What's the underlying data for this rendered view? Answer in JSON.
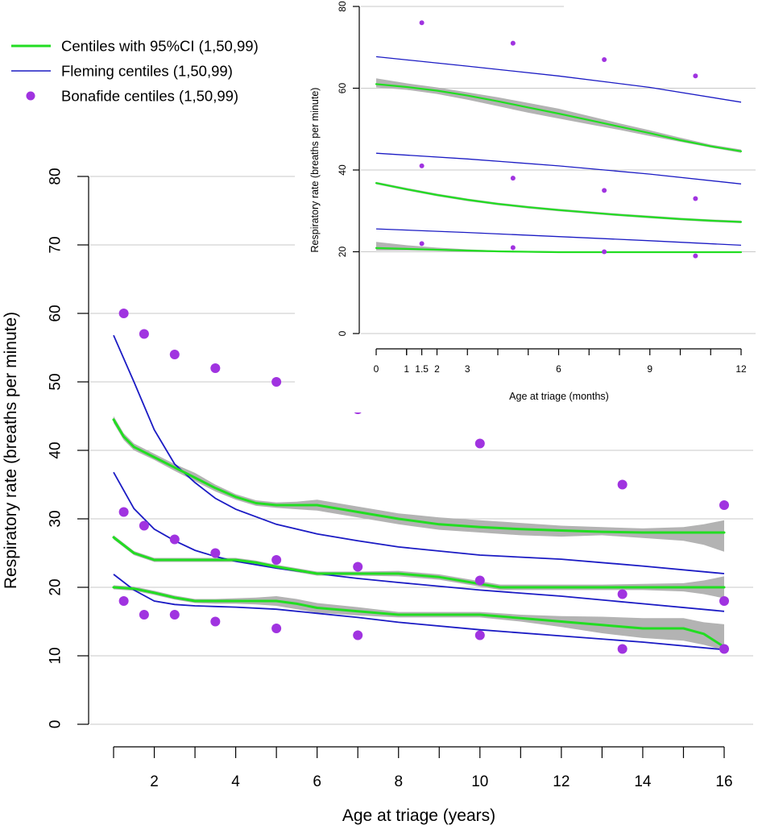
{
  "legend": {
    "items": [
      {
        "label": "Centiles with 95%CI (1,50,99)",
        "kind": "line",
        "color": "#22dd22",
        "width": 3
      },
      {
        "label": "Fleming centiles (1,50,99)",
        "kind": "line",
        "color": "#1b1bc4",
        "width": 1.6
      },
      {
        "label": "Bonafide centiles (1,50,99)",
        "kind": "point",
        "color": "#a033e0"
      }
    ]
  },
  "colors": {
    "centile": "#22dd22",
    "ci_band": "#b3b3b3",
    "fleming": "#1b1bc4",
    "bonafide": "#a033e0",
    "grid": "#c8c8c8"
  },
  "chart_data": [
    {
      "id": "main",
      "type": "line",
      "xlabel": "Age at triage (years)",
      "ylabel": "Respiratory rate (breaths per minute)",
      "xlim": [
        1,
        16
      ],
      "ylim": [
        0,
        80
      ],
      "x_ticks": [
        1,
        2,
        3,
        4,
        5,
        6,
        7,
        8,
        9,
        10,
        11,
        12,
        13,
        14,
        15,
        16
      ],
      "x_tick_labels": [
        "",
        "2",
        "",
        "4",
        "",
        "6",
        "",
        "8",
        "",
        "10",
        "",
        "12",
        "",
        "14",
        "",
        "16"
      ],
      "y_ticks": [
        0,
        10,
        20,
        30,
        40,
        50,
        60,
        70,
        80
      ],
      "y_tick_labels": [
        "0",
        "10",
        "20",
        "30",
        "40",
        "50",
        "60",
        "70",
        "80"
      ],
      "grid": "horizontal",
      "series": [
        {
          "group": "centile",
          "centile": 99,
          "x": [
            1.0,
            1.25,
            1.5,
            2.0,
            2.5,
            3.0,
            3.5,
            4.0,
            4.5,
            5.0,
            5.5,
            6.0,
            7.0,
            8.0,
            9.0,
            10.0,
            11.0,
            12.0,
            13.0,
            14.0,
            15.0,
            15.5,
            16.0
          ],
          "y": [
            44.5,
            42.0,
            40.5,
            39.0,
            37.5,
            36.0,
            34.5,
            33.2,
            32.3,
            32.0,
            32.0,
            32.0,
            31.0,
            30.0,
            29.2,
            28.8,
            28.5,
            28.3,
            28.1,
            28.0,
            28.0,
            28.0,
            28.0
          ],
          "ci_low": [
            44.0,
            41.5,
            40.0,
            38.6,
            37.0,
            35.5,
            34.0,
            32.8,
            31.9,
            31.6,
            31.4,
            31.2,
            30.2,
            29.2,
            28.4,
            28.0,
            27.6,
            27.4,
            27.6,
            27.2,
            26.8,
            26.2,
            25.2
          ],
          "ci_high": [
            45.0,
            42.5,
            41.0,
            39.5,
            38.0,
            36.7,
            35.0,
            33.6,
            32.7,
            32.4,
            32.5,
            32.8,
            31.8,
            30.8,
            30.2,
            29.8,
            29.4,
            29.0,
            28.8,
            28.6,
            28.8,
            29.2,
            29.8
          ]
        },
        {
          "group": "centile",
          "centile": 50,
          "x": [
            1.0,
            1.5,
            2.0,
            2.5,
            3.0,
            3.5,
            4.0,
            4.5,
            5.0,
            6.0,
            7.0,
            8.0,
            9.0,
            9.5,
            10.0,
            10.5,
            11.0,
            12.0,
            13.0,
            14.0,
            15.0,
            15.5,
            16.0
          ],
          "y": [
            27.3,
            25.0,
            24.0,
            24.0,
            24.0,
            24.0,
            24.0,
            23.6,
            23.0,
            22.0,
            22.0,
            22.0,
            21.5,
            21.0,
            20.5,
            20.0,
            20.0,
            20.0,
            20.0,
            20.0,
            20.0,
            20.0,
            20.0
          ],
          "ci_low": [
            27.0,
            24.7,
            23.7,
            23.7,
            23.7,
            23.7,
            23.7,
            23.3,
            22.7,
            21.7,
            21.7,
            21.6,
            21.1,
            20.6,
            20.1,
            19.6,
            19.6,
            19.6,
            19.6,
            19.6,
            19.4,
            19.0,
            18.4
          ],
          "ci_high": [
            27.6,
            25.3,
            24.3,
            24.3,
            24.3,
            24.3,
            24.3,
            23.9,
            23.3,
            22.3,
            22.3,
            22.4,
            21.9,
            21.4,
            20.9,
            20.4,
            20.4,
            20.4,
            20.4,
            20.5,
            20.6,
            21.0,
            21.6
          ]
        },
        {
          "group": "centile",
          "centile": 1,
          "x": [
            1.0,
            1.5,
            2.0,
            2.5,
            3.0,
            3.5,
            4.0,
            4.5,
            5.0,
            5.5,
            6.0,
            7.0,
            8.0,
            9.0,
            10.0,
            11.0,
            12.0,
            13.0,
            14.0,
            15.0,
            15.5,
            16.0
          ],
          "y": [
            20.0,
            19.8,
            19.2,
            18.5,
            18.0,
            18.0,
            18.0,
            18.0,
            18.0,
            17.6,
            17.0,
            16.5,
            16.0,
            16.0,
            16.0,
            15.5,
            15.0,
            14.5,
            14.0,
            14.0,
            13.2,
            11.3
          ],
          "ci_low": [
            19.7,
            19.5,
            18.9,
            18.2,
            17.7,
            17.6,
            17.6,
            17.5,
            17.3,
            16.8,
            16.3,
            15.9,
            15.6,
            15.6,
            15.6,
            15.0,
            14.2,
            13.3,
            12.6,
            12.2,
            11.6,
            10.8
          ],
          "ci_high": [
            20.3,
            20.1,
            19.5,
            18.8,
            18.3,
            18.3,
            18.4,
            18.5,
            18.7,
            18.3,
            17.7,
            17.1,
            16.4,
            16.4,
            16.4,
            16.0,
            15.8,
            15.7,
            15.5,
            15.5,
            14.9,
            14.6
          ]
        },
        {
          "group": "fleming",
          "centile": 99,
          "x": [
            1.0,
            1.5,
            2.0,
            2.5,
            3.0,
            3.5,
            4.0,
            5.0,
            6.0,
            7.0,
            8.0,
            10.0,
            12.0,
            14.0,
            16.0
          ],
          "y": [
            56.8,
            50.0,
            43.0,
            38.0,
            35.3,
            33.0,
            31.4,
            29.2,
            27.8,
            26.8,
            25.9,
            24.7,
            24.1,
            23.1,
            22.0
          ]
        },
        {
          "group": "fleming",
          "centile": 50,
          "x": [
            1.0,
            1.5,
            2.0,
            2.5,
            3.0,
            3.5,
            4.0,
            5.0,
            6.0,
            7.0,
            8.0,
            10.0,
            12.0,
            14.0,
            16.0
          ],
          "y": [
            36.8,
            31.5,
            28.5,
            26.8,
            25.4,
            24.5,
            23.8,
            22.8,
            22.0,
            21.3,
            20.7,
            19.6,
            18.7,
            17.6,
            16.5
          ]
        },
        {
          "group": "fleming",
          "centile": 1,
          "x": [
            1.0,
            1.5,
            2.0,
            2.5,
            3.0,
            3.5,
            4.0,
            5.0,
            6.0,
            7.0,
            8.0,
            10.0,
            12.0,
            14.0,
            16.0
          ],
          "y": [
            21.9,
            19.6,
            18.0,
            17.5,
            17.3,
            17.2,
            17.1,
            16.8,
            16.2,
            15.6,
            14.9,
            13.8,
            12.9,
            12.0,
            10.9
          ]
        },
        {
          "group": "bonafide",
          "centile": 99,
          "x": [
            1.25,
            1.75,
            2.5,
            3.5,
            5.0,
            7.0,
            10.0,
            13.5,
            16.0
          ],
          "y": [
            60,
            57,
            54,
            52,
            50,
            46,
            41,
            35,
            32
          ]
        },
        {
          "group": "bonafide",
          "centile": 50,
          "x": [
            1.25,
            1.75,
            2.5,
            3.5,
            5.0,
            7.0,
            10.0,
            13.5,
            16.0
          ],
          "y": [
            31,
            29,
            27,
            25,
            24,
            23,
            21,
            19,
            18
          ]
        },
        {
          "group": "bonafide",
          "centile": 1,
          "x": [
            1.25,
            1.75,
            2.5,
            3.5,
            5.0,
            7.0,
            10.0,
            13.5,
            16.0
          ],
          "y": [
            18,
            16,
            16,
            15,
            14,
            13,
            13,
            11,
            11
          ]
        }
      ]
    },
    {
      "id": "inset",
      "type": "line",
      "xlabel": "Age at triage (months)",
      "ylabel": "Respiratory rate (breaths per minute)",
      "xlim": [
        0,
        12
      ],
      "ylim": [
        0,
        80
      ],
      "x_ticks": [
        0,
        1,
        1.5,
        2,
        3,
        6,
        9,
        12
      ],
      "x_minor_ticks": [
        1,
        4,
        5,
        7,
        8,
        10,
        11
      ],
      "x_tick_labels": [
        "0",
        "1",
        "1.5",
        "2",
        "3",
        "6",
        "9",
        "12"
      ],
      "y_ticks": [
        0,
        20,
        40,
        60,
        80
      ],
      "y_tick_labels": [
        "0",
        "20",
        "40",
        "60",
        "80"
      ],
      "grid": "horizontal",
      "series": [
        {
          "group": "centile",
          "centile": 99,
          "x": [
            0,
            1,
            2,
            3,
            4,
            5,
            6,
            7,
            8,
            9,
            10,
            11,
            12
          ],
          "y": [
            61.0,
            60.3,
            59.4,
            58.2,
            56.8,
            55.3,
            53.8,
            52.2,
            50.6,
            49.0,
            47.3,
            45.8,
            44.6
          ],
          "ci_low": [
            60.2,
            59.6,
            58.6,
            57.2,
            55.6,
            54.0,
            52.6,
            51.2,
            49.8,
            48.3,
            46.9,
            45.5,
            44.2
          ],
          "ci_high": [
            62.4,
            61.2,
            60.2,
            59.0,
            57.8,
            56.4,
            55.0,
            53.2,
            51.4,
            49.7,
            47.9,
            46.2,
            45.0
          ]
        },
        {
          "group": "centile",
          "centile": 50,
          "x": [
            0,
            1,
            2,
            3,
            4,
            5,
            6,
            7,
            8,
            9,
            10,
            11,
            12
          ],
          "y": [
            36.8,
            35.3,
            33.9,
            32.7,
            31.7,
            30.9,
            30.2,
            29.6,
            29.0,
            28.5,
            28.0,
            27.6,
            27.3
          ],
          "ci_low": [
            36.5,
            35.0,
            33.6,
            32.4,
            31.4,
            30.6,
            29.9,
            29.3,
            28.7,
            28.2,
            27.7,
            27.3,
            27.0
          ],
          "ci_high": [
            37.1,
            35.6,
            34.2,
            33.0,
            32.0,
            31.2,
            30.5,
            29.9,
            29.3,
            28.8,
            28.3,
            27.9,
            27.6
          ]
        },
        {
          "group": "centile",
          "centile": 1,
          "x": [
            0,
            1,
            2,
            3,
            4,
            5,
            6,
            7,
            8,
            9,
            10,
            11,
            12
          ],
          "y": [
            20.9,
            20.7,
            20.5,
            20.3,
            20.1,
            20.0,
            19.9,
            19.9,
            19.9,
            19.9,
            19.9,
            19.9,
            19.9
          ],
          "ci_low": [
            20.3,
            20.3,
            20.2,
            20.0,
            19.9,
            19.8,
            19.7,
            19.7,
            19.7,
            19.7,
            19.7,
            19.7,
            19.7
          ],
          "ci_high": [
            22.4,
            21.6,
            21.0,
            20.6,
            20.3,
            20.2,
            20.1,
            20.1,
            20.1,
            20.1,
            20.1,
            20.1,
            20.1
          ]
        },
        {
          "group": "fleming",
          "centile": 99,
          "x": [
            0,
            3,
            6,
            9,
            12
          ],
          "y": [
            67.7,
            65.4,
            63.0,
            60.2,
            56.6
          ]
        },
        {
          "group": "fleming",
          "centile": 50,
          "x": [
            0,
            3,
            6,
            9,
            12
          ],
          "y": [
            44.1,
            42.7,
            41.0,
            39.0,
            36.6
          ]
        },
        {
          "group": "fleming",
          "centile": 1,
          "x": [
            0,
            3,
            6,
            9,
            12
          ],
          "y": [
            25.6,
            24.7,
            23.7,
            22.7,
            21.6
          ]
        },
        {
          "group": "bonafide",
          "centile": 99,
          "x": [
            1.5,
            4.5,
            7.5,
            10.5
          ],
          "y": [
            76,
            71,
            67,
            63
          ]
        },
        {
          "group": "bonafide",
          "centile": 50,
          "x": [
            1.5,
            4.5,
            7.5,
            10.5
          ],
          "y": [
            41,
            38,
            35,
            33
          ]
        },
        {
          "group": "bonafide",
          "centile": 1,
          "x": [
            1.5,
            4.5,
            7.5,
            10.5
          ],
          "y": [
            22,
            21,
            20,
            19
          ]
        }
      ]
    }
  ]
}
